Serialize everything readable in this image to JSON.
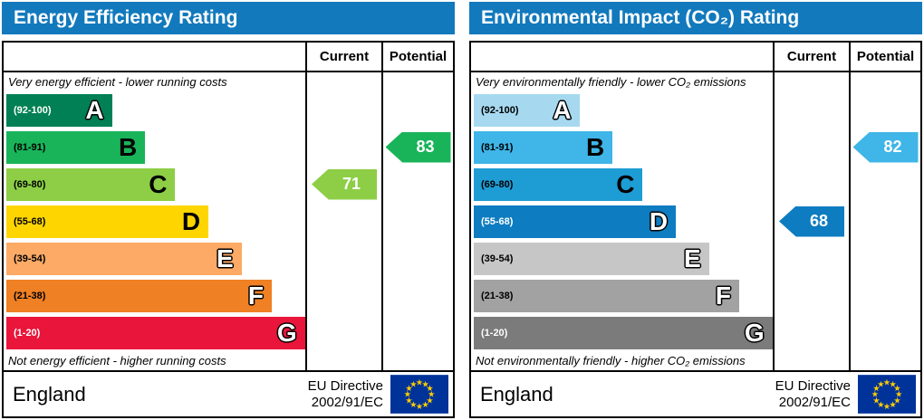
{
  "header_color": "#1279bd",
  "eu_flag": {
    "background": "#003399",
    "star_color": "#ffcc00"
  },
  "chart_data": [
    {
      "type": "bar",
      "title": "Energy Efficiency Rating",
      "bands": [
        {
          "label": "A",
          "range": [
            92,
            100
          ]
        },
        {
          "label": "B",
          "range": [
            81,
            91
          ]
        },
        {
          "label": "C",
          "range": [
            69,
            80
          ]
        },
        {
          "label": "D",
          "range": [
            55,
            68
          ]
        },
        {
          "label": "E",
          "range": [
            39,
            54
          ]
        },
        {
          "label": "F",
          "range": [
            21,
            38
          ]
        },
        {
          "label": "G",
          "range": [
            1,
            20
          ]
        }
      ],
      "series": [
        {
          "name": "Current",
          "value": 71,
          "band": "C"
        },
        {
          "name": "Potential",
          "value": 83,
          "band": "B"
        }
      ],
      "top_note": "Very energy efficient - lower running costs",
      "bottom_note": "Not energy efficient - higher running costs",
      "region": "England",
      "directive": "EU Directive 2002/91/EC"
    },
    {
      "type": "bar",
      "title": "Environmental Impact (CO₂) Rating",
      "bands": [
        {
          "label": "A",
          "range": [
            92,
            100
          ]
        },
        {
          "label": "B",
          "range": [
            81,
            91
          ]
        },
        {
          "label": "C",
          "range": [
            69,
            80
          ]
        },
        {
          "label": "D",
          "range": [
            55,
            68
          ]
        },
        {
          "label": "E",
          "range": [
            39,
            54
          ]
        },
        {
          "label": "F",
          "range": [
            21,
            38
          ]
        },
        {
          "label": "G",
          "range": [
            1,
            20
          ]
        }
      ],
      "series": [
        {
          "name": "Current",
          "value": 68,
          "band": "D"
        },
        {
          "name": "Potential",
          "value": 82,
          "band": "B"
        }
      ],
      "top_note": "Very environmentally friendly - lower CO₂ emissions",
      "bottom_note": "Not environmentally friendly - higher CO₂ emissions",
      "region": "England",
      "directive": "EU Directive 2002/91/EC"
    }
  ],
  "panels": [
    {
      "id": "energy-efficiency",
      "title": "Energy Efficiency Rating",
      "col_current": "Current",
      "col_potential": "Potential",
      "top_caption": "Very energy efficient - lower running costs",
      "bottom_caption": "Not energy efficient - higher running costs",
      "bands": [
        {
          "range": "(92-100)",
          "letter": "A",
          "color": "#008054",
          "width_pct": 35,
          "range_color": "#ffffff",
          "letter_style": "light"
        },
        {
          "range": "(81-91)",
          "letter": "B",
          "color": "#19b459",
          "width_pct": 46,
          "range_color": "#000000",
          "letter_style": "dark"
        },
        {
          "range": "(69-80)",
          "letter": "C",
          "color": "#8dce46",
          "width_pct": 56,
          "range_color": "#000000",
          "letter_style": "dark"
        },
        {
          "range": "(55-68)",
          "letter": "D",
          "color": "#ffd500",
          "width_pct": 67,
          "range_color": "#000000",
          "letter_style": "dark"
        },
        {
          "range": "(39-54)",
          "letter": "E",
          "color": "#fcaa65",
          "width_pct": 78,
          "range_color": "#000000",
          "letter_style": "light"
        },
        {
          "range": "(21-38)",
          "letter": "F",
          "color": "#ef8023",
          "width_pct": 88,
          "range_color": "#000000",
          "letter_style": "light"
        },
        {
          "range": "(1-20)",
          "letter": "G",
          "color": "#e9153b",
          "width_pct": 99,
          "range_color": "#ffffff",
          "letter_style": "light"
        }
      ],
      "current": {
        "value": "71",
        "band_index": 2,
        "color": "#8dce46"
      },
      "potential": {
        "value": "83",
        "band_index": 1,
        "color": "#19b459"
      },
      "footer_region": "England",
      "footer_directive": [
        "EU Directive",
        "2002/91/EC"
      ]
    },
    {
      "id": "environmental-impact",
      "title": "Environmental Impact (CO₂) Rating",
      "col_current": "Current",
      "col_potential": "Potential",
      "top_caption": "Very environmentally friendly - lower CO₂ emissions",
      "bottom_caption": "Not environmentally friendly - higher CO₂ emissions",
      "bands": [
        {
          "range": "(92-100)",
          "letter": "A",
          "color": "#a6d9f0",
          "width_pct": 35,
          "range_color": "#000000",
          "letter_style": "light"
        },
        {
          "range": "(81-91)",
          "letter": "B",
          "color": "#3fb5e8",
          "width_pct": 46,
          "range_color": "#000000",
          "letter_style": "dark"
        },
        {
          "range": "(69-80)",
          "letter": "C",
          "color": "#1e9cd4",
          "width_pct": 56,
          "range_color": "#000000",
          "letter_style": "dark"
        },
        {
          "range": "(55-68)",
          "letter": "D",
          "color": "#0d7cc1",
          "width_pct": 67,
          "range_color": "#ffffff",
          "letter_style": "light"
        },
        {
          "range": "(39-54)",
          "letter": "E",
          "color": "#c6c6c6",
          "width_pct": 78,
          "range_color": "#000000",
          "letter_style": "light"
        },
        {
          "range": "(21-38)",
          "letter": "F",
          "color": "#a2a2a2",
          "width_pct": 88,
          "range_color": "#000000",
          "letter_style": "light"
        },
        {
          "range": "(1-20)",
          "letter": "G",
          "color": "#7b7b7b",
          "width_pct": 99,
          "range_color": "#ffffff",
          "letter_style": "light"
        }
      ],
      "current": {
        "value": "68",
        "band_index": 3,
        "color": "#0d7cc1"
      },
      "potential": {
        "value": "82",
        "band_index": 1,
        "color": "#3fb5e8"
      },
      "footer_region": "England",
      "footer_directive": [
        "EU Directive",
        "2002/91/EC"
      ]
    }
  ]
}
